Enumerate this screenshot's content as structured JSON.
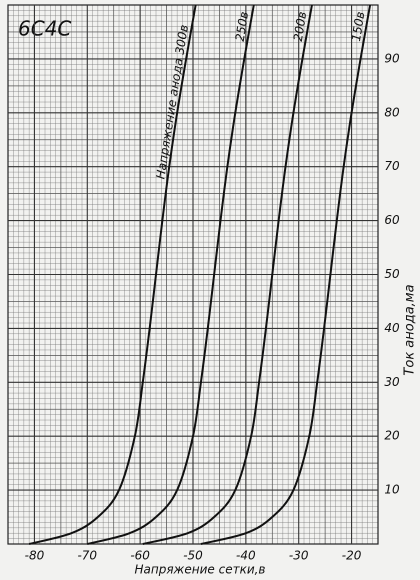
{
  "chart_data": {
    "type": "line",
    "title": "6С4С",
    "x_label": "Напряжение сетки,в",
    "y_label": "Ток анода,ма",
    "xlim": [
      -85,
      -15
    ],
    "xticks": [
      -80,
      -70,
      -60,
      -50,
      -40,
      -30,
      -20
    ],
    "ylim": [
      0,
      100
    ],
    "yticks": [
      10,
      20,
      30,
      40,
      50,
      60,
      70,
      80,
      90
    ],
    "grid": true,
    "series": [
      {
        "name": "Напряжение анода 300в",
        "color": "#111111",
        "x": [
          -81,
          -73,
          -68,
          -64,
          -61,
          -59.5,
          -58.2,
          -57,
          -55.8,
          -54.5,
          -53,
          -51.3,
          -49.5
        ],
        "values": [
          0,
          2,
          5,
          10,
          20,
          30,
          40,
          50,
          60,
          70,
          80,
          90,
          100
        ]
      },
      {
        "name": "250в",
        "color": "#111111",
        "x": [
          -70,
          -62,
          -57,
          -53,
          -50,
          -48.5,
          -47.2,
          -46,
          -44.8,
          -43.5,
          -42,
          -40.3,
          -38.5
        ],
        "values": [
          0,
          2,
          5,
          10,
          20,
          30,
          40,
          50,
          60,
          70,
          80,
          90,
          100
        ]
      },
      {
        "name": "200в",
        "color": "#111111",
        "x": [
          -59.5,
          -51,
          -46,
          -42,
          -39,
          -37.5,
          -36.2,
          -35,
          -33.8,
          -32.5,
          -31,
          -29.3,
          -27.5
        ],
        "values": [
          0,
          2,
          5,
          10,
          20,
          30,
          40,
          50,
          60,
          70,
          80,
          90,
          100
        ]
      },
      {
        "name": "150в",
        "color": "#111111",
        "x": [
          -48.5,
          -40,
          -35,
          -31,
          -28,
          -26.5,
          -25.2,
          -24,
          -22.8,
          -21.5,
          -20,
          -18.3,
          -16.5
        ],
        "values": [
          0,
          2,
          5,
          10,
          20,
          30,
          40,
          50,
          60,
          70,
          80,
          90,
          100
        ]
      }
    ]
  }
}
